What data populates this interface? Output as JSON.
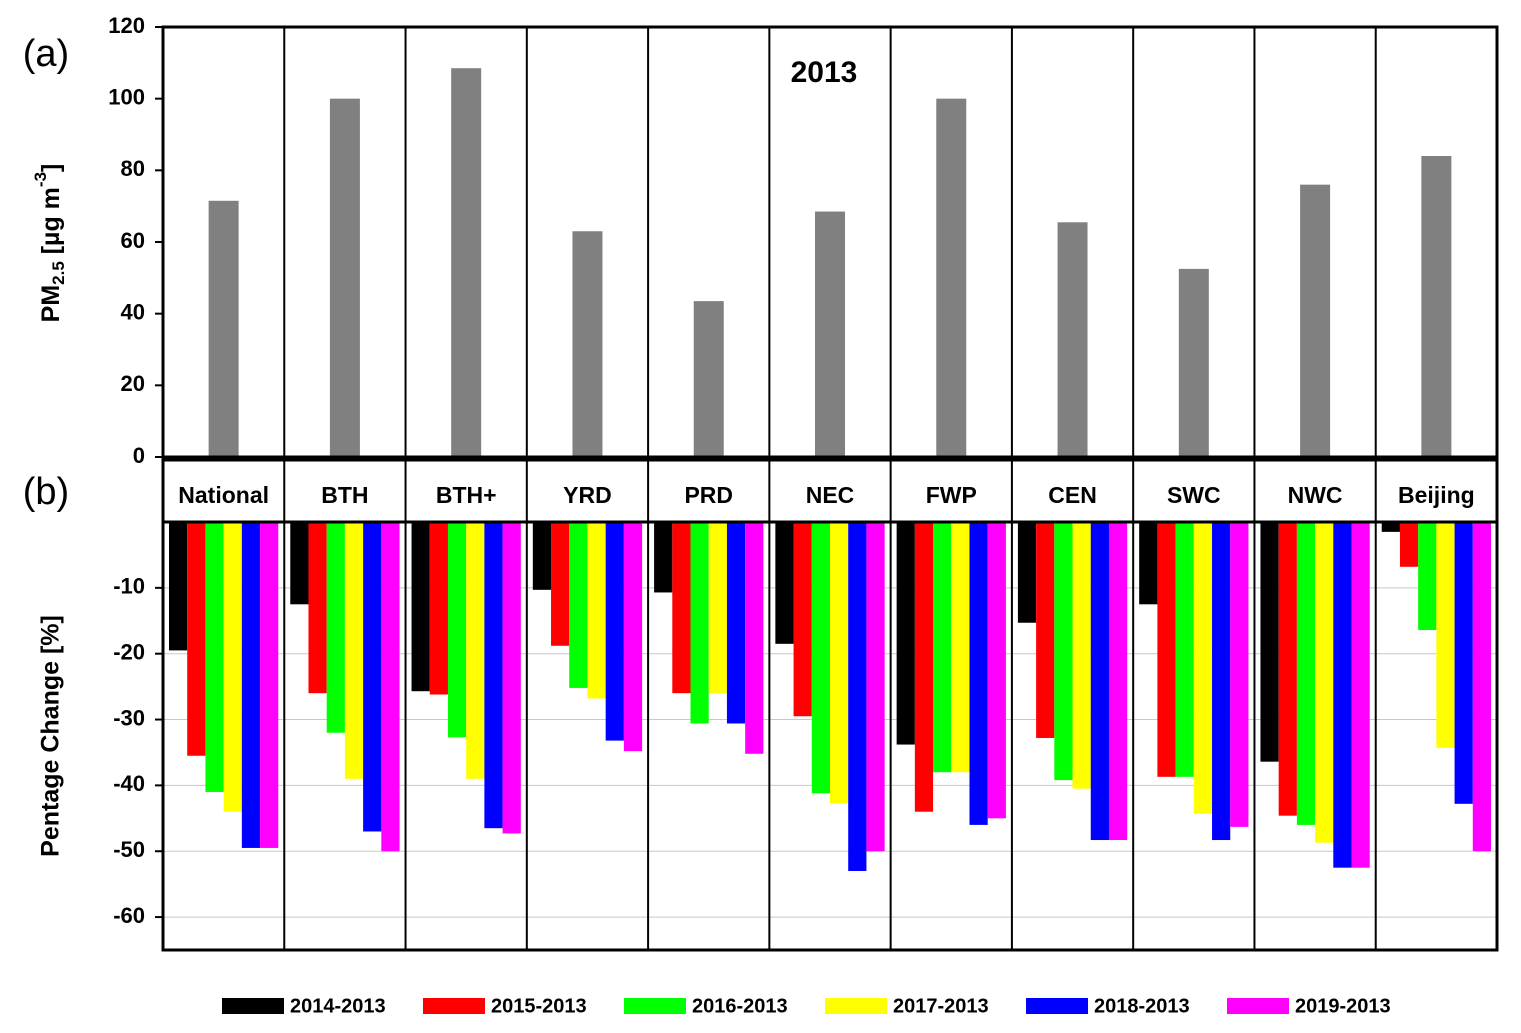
{
  "chart_data": [
    {
      "type": "bar",
      "panel_label": "(a)",
      "title": "2013",
      "ylabel": "PM",
      "ylabel_sub": "2.5",
      "ylabel_unit": " [µg m",
      "ylabel_sup": "-3",
      "ylabel_end": "]",
      "categories": [
        "National",
        "BTH",
        "BTH+",
        "YRD",
        "PRD",
        "NEC",
        "FWP",
        "CEN",
        "SWC",
        "NWC",
        "Beijing"
      ],
      "values": [
        71.5,
        100,
        108.5,
        63,
        43.5,
        68.5,
        100,
        65.5,
        52.5,
        76,
        84
      ],
      "color": "#808080",
      "ylim": [
        0,
        120
      ],
      "yticks": [
        0,
        20,
        40,
        60,
        80,
        100,
        120
      ]
    },
    {
      "type": "grouped-bar",
      "panel_label": "(b)",
      "ylabel": "Pentage Change [%]",
      "ylim": [
        -65,
        0
      ],
      "yticks": [
        -60,
        -50,
        -40,
        -30,
        -20,
        -10
      ],
      "grid": true,
      "legend": "bottom",
      "series": [
        {
          "name": "2014-2013",
          "color": "#000000",
          "values": [
            -19.5,
            -12.5,
            -25.7,
            -10.3,
            -10.7,
            -18.5,
            -33.8,
            -15.3,
            -12.5,
            -36.4,
            -1.5
          ]
        },
        {
          "name": "2015-2013",
          "color": "#ff0000",
          "values": [
            -35.5,
            -26,
            -26.2,
            -18.8,
            -26,
            -29.5,
            -44,
            -32.8,
            -38.7,
            -44.6,
            -6.8
          ]
        },
        {
          "name": "2016-2013",
          "color": "#00ff00",
          "values": [
            -41,
            -32,
            -32.7,
            -25.2,
            -30.6,
            -41.2,
            -38,
            -39.2,
            -38.7,
            -46,
            -16.4
          ]
        },
        {
          "name": "2017-2013",
          "color": "#ffff00",
          "values": [
            -44,
            -39,
            -39,
            -26.8,
            -26,
            -42.7,
            -38,
            -40.5,
            -44.3,
            -48.7,
            -34.3
          ]
        },
        {
          "name": "2018-2013",
          "color": "#0000ff",
          "values": [
            -49.5,
            -47,
            -46.5,
            -33.2,
            -30.6,
            -53,
            -46,
            -48.3,
            -48.3,
            -52.5,
            -42.8
          ]
        },
        {
          "name": "2019-2013",
          "color": "#ff00ff",
          "values": [
            -49.5,
            -50,
            -47.3,
            -34.8,
            -35.2,
            -50,
            -45,
            -48.3,
            -46.3,
            -52.5,
            -50
          ]
        }
      ]
    }
  ]
}
